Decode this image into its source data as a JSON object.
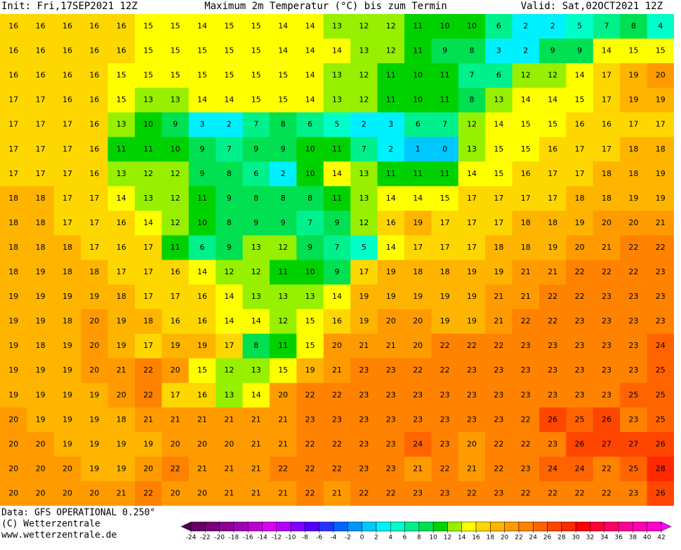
{
  "header": {
    "init": "Init: Fri,17SEP2021 12Z",
    "title": "Maximum 2m Temperatur (°C) bis zum Termin",
    "valid": "Valid: Sat,02OCT2021 12Z"
  },
  "footer": {
    "data": "Data: GFS OPERATIONAL 0.250°",
    "copyright": "(C) Wetterzentrale",
    "url": "www.wetterzentrale.de"
  },
  "colorbar": {
    "ticks": [
      -24,
      -22,
      -20,
      -18,
      -16,
      -14,
      -12,
      -10,
      -8,
      -6,
      -4,
      -2,
      0,
      2,
      4,
      6,
      8,
      10,
      12,
      14,
      16,
      18,
      20,
      22,
      24,
      26,
      28,
      30,
      32,
      34,
      36,
      38,
      40,
      42
    ],
    "colors": [
      "#500050",
      "#640064",
      "#78007a",
      "#8c0096",
      "#a000b4",
      "#be00d2",
      "#dc00f0",
      "#b400ff",
      "#8200ff",
      "#5000ff",
      "#2832ff",
      "#0064ff",
      "#0096ff",
      "#00c8ff",
      "#00f0ff",
      "#00ffc8",
      "#00f08c",
      "#00e050",
      "#00d200",
      "#96f000",
      "#ffff00",
      "#ffd700",
      "#ffb400",
      "#ff9b00",
      "#ff8200",
      "#ff6400",
      "#ff4600",
      "#ff2800",
      "#ff0000",
      "#ff0032",
      "#ff0064",
      "#ff0096",
      "#ff00b4",
      "#ff00d2",
      "#ff00ff"
    ]
  },
  "grid": [
    [
      16,
      16,
      16,
      16,
      16,
      15,
      15,
      14,
      15,
      15,
      14,
      14,
      13,
      12,
      12,
      11,
      10,
      10,
      6,
      2,
      2,
      5,
      7,
      8,
      4
    ],
    [
      16,
      16,
      16,
      16,
      16,
      15,
      15,
      15,
      15,
      15,
      14,
      14,
      14,
      13,
      12,
      11,
      9,
      8,
      3,
      2,
      9,
      9,
      14,
      15,
      15
    ],
    [
      16,
      16,
      16,
      16,
      15,
      15,
      15,
      15,
      15,
      15,
      15,
      14,
      13,
      12,
      11,
      10,
      11,
      7,
      6,
      12,
      12,
      14,
      17,
      19,
      20
    ],
    [
      17,
      17,
      16,
      16,
      15,
      13,
      13,
      14,
      14,
      15,
      15,
      14,
      13,
      12,
      11,
      10,
      11,
      8,
      13,
      14,
      14,
      15,
      17,
      19,
      19
    ],
    [
      17,
      17,
      17,
      16,
      13,
      10,
      9,
      3,
      2,
      7,
      8,
      6,
      5,
      2,
      3,
      6,
      7,
      12,
      14,
      15,
      15,
      16,
      16,
      17,
      17
    ],
    [
      17,
      17,
      17,
      16,
      11,
      11,
      10,
      9,
      7,
      9,
      9,
      10,
      11,
      7,
      2,
      1,
      0,
      13,
      15,
      15,
      16,
      17,
      17,
      18,
      18
    ],
    [
      17,
      17,
      17,
      16,
      13,
      12,
      12,
      9,
      8,
      6,
      2,
      10,
      14,
      13,
      11,
      11,
      11,
      14,
      15,
      16,
      17,
      17,
      18,
      18,
      19
    ],
    [
      18,
      18,
      17,
      17,
      14,
      13,
      12,
      11,
      9,
      8,
      8,
      8,
      11,
      13,
      14,
      14,
      15,
      17,
      17,
      17,
      17,
      18,
      18,
      19,
      19
    ],
    [
      18,
      18,
      17,
      17,
      16,
      14,
      12,
      10,
      8,
      9,
      9,
      7,
      9,
      12,
      16,
      19,
      17,
      17,
      17,
      18,
      18,
      19,
      20,
      20,
      21
    ],
    [
      18,
      18,
      18,
      17,
      16,
      17,
      11,
      6,
      9,
      13,
      12,
      9,
      7,
      5,
      14,
      17,
      17,
      17,
      18,
      18,
      19,
      20,
      21,
      22,
      22
    ],
    [
      18,
      19,
      18,
      18,
      17,
      17,
      16,
      14,
      12,
      12,
      11,
      10,
      9,
      17,
      19,
      18,
      18,
      19,
      19,
      21,
      21,
      22,
      22,
      22,
      23
    ],
    [
      19,
      19,
      19,
      19,
      18,
      17,
      17,
      16,
      14,
      13,
      13,
      13,
      14,
      19,
      19,
      19,
      19,
      19,
      21,
      21,
      22,
      22,
      23,
      23,
      23
    ],
    [
      19,
      19,
      18,
      20,
      19,
      18,
      16,
      16,
      14,
      14,
      12,
      15,
      16,
      19,
      20,
      20,
      19,
      19,
      21,
      22,
      22,
      23,
      23,
      23,
      23
    ],
    [
      19,
      18,
      19,
      20,
      19,
      17,
      19,
      19,
      17,
      8,
      11,
      15,
      20,
      21,
      21,
      20,
      22,
      22,
      22,
      23,
      23,
      23,
      23,
      23,
      24
    ],
    [
      19,
      19,
      19,
      20,
      21,
      22,
      20,
      15,
      12,
      13,
      15,
      19,
      21,
      23,
      23,
      22,
      22,
      23,
      23,
      23,
      23,
      23,
      23,
      23,
      25
    ],
    [
      19,
      19,
      19,
      19,
      20,
      22,
      17,
      16,
      13,
      14,
      20,
      22,
      22,
      23,
      23,
      23,
      23,
      23,
      23,
      23,
      23,
      23,
      23,
      25,
      25
    ],
    [
      20,
      19,
      19,
      19,
      18,
      21,
      21,
      21,
      21,
      21,
      21,
      23,
      23,
      23,
      23,
      23,
      23,
      23,
      23,
      22,
      26,
      25,
      26,
      23,
      25
    ],
    [
      20,
      20,
      19,
      19,
      19,
      19,
      20,
      20,
      20,
      21,
      21,
      22,
      22,
      23,
      23,
      24,
      23,
      20,
      22,
      22,
      23,
      26,
      27,
      27,
      26
    ],
    [
      20,
      20,
      20,
      19,
      19,
      20,
      22,
      21,
      21,
      21,
      22,
      22,
      22,
      23,
      23,
      21,
      22,
      21,
      22,
      23,
      24,
      24,
      22,
      25,
      28
    ],
    [
      20,
      20,
      20,
      20,
      21,
      22,
      20,
      20,
      21,
      21,
      21,
      22,
      21,
      22,
      22,
      23,
      23,
      22,
      23,
      22,
      22,
      22,
      22,
      23,
      26
    ]
  ]
}
